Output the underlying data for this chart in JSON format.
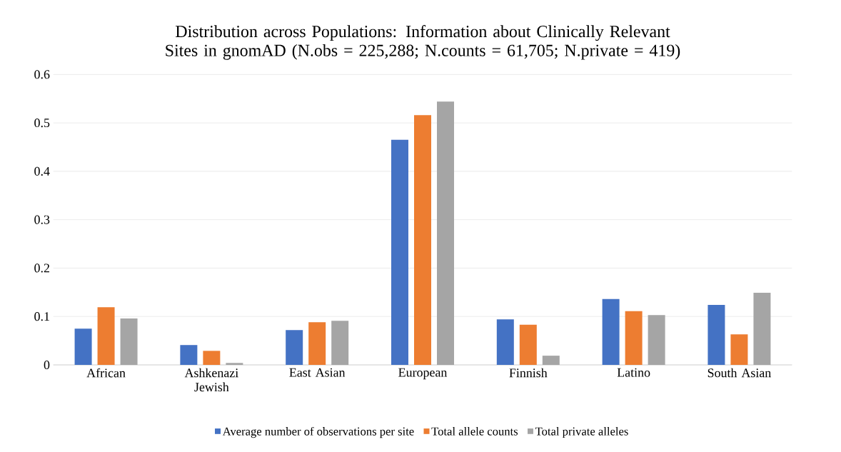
{
  "chart_data": {
    "type": "bar",
    "title": "Distribution across Populations: Information about Clinically Relevant Sites in gnomAD (N.obs = 225,288; N.counts = 61,705; N.private = 419)",
    "categories": [
      "African",
      "Ashkenazi Jewish",
      "East Asian",
      "European",
      "Finnish",
      "Latino",
      "South Asian"
    ],
    "series": [
      {
        "name": "Average number of observations per site",
        "color": "#4472c4",
        "values": [
          0.075,
          0.041,
          0.072,
          0.465,
          0.094,
          0.136,
          0.124
        ]
      },
      {
        "name": "Total allele counts",
        "color": "#ed7d31",
        "values": [
          0.119,
          0.029,
          0.088,
          0.516,
          0.083,
          0.111,
          0.063
        ]
      },
      {
        "name": "Total private alleles",
        "color": "#a5a5a5",
        "values": [
          0.096,
          0.004,
          0.091,
          0.544,
          0.019,
          0.103,
          0.149
        ]
      }
    ],
    "ylim": [
      0,
      0.6
    ],
    "yticks": [
      0,
      0.1,
      0.2,
      0.3,
      0.4,
      0.5,
      0.6
    ],
    "grid": "y",
    "legend": "bottom"
  }
}
